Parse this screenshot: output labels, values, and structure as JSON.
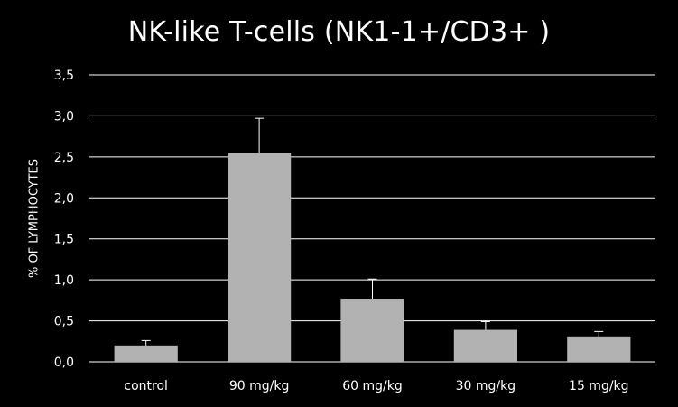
{
  "chart_data": {
    "type": "bar",
    "title": "NK-like T-cells (NK1-1+/CD3+ )",
    "xlabel": "",
    "ylabel": "% OF LYMPHOCYTES",
    "categories": [
      "control",
      "90 mg/kg",
      "60 mg/kg",
      "30 mg/kg",
      "15 mg/kg"
    ],
    "values": [
      0.2,
      2.55,
      0.77,
      0.39,
      0.31
    ],
    "error_upper": [
      0.06,
      0.42,
      0.24,
      0.1,
      0.06
    ],
    "ylim": [
      0,
      3.5
    ],
    "yticks": [
      "0,0",
      "0,5",
      "1,0",
      "1,5",
      "2,0",
      "2,5",
      "3,0",
      "3,5"
    ],
    "grid": true,
    "legend": "none",
    "colors": {
      "background": "#000000",
      "bar": "#b2b2b2",
      "grid": "#ffffff",
      "text": "#ffffff"
    }
  }
}
